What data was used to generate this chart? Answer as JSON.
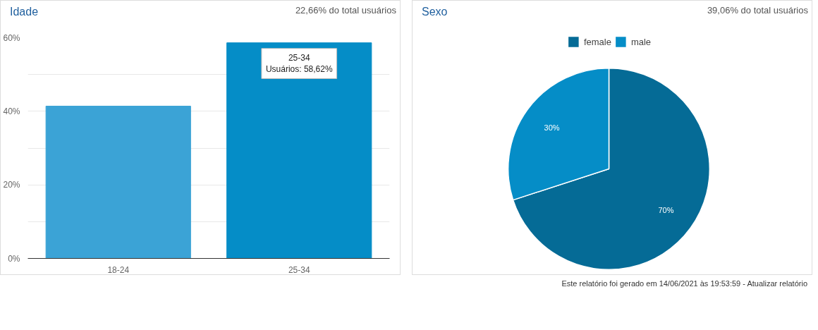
{
  "chart_data": [
    {
      "type": "bar",
      "title": "Idade",
      "subtitle": "22,66% do total usuários",
      "categories": [
        "18-24",
        "25-34"
      ],
      "values": [
        41.4,
        58.62
      ],
      "colors": [
        "#3ba3d6",
        "#058dc7"
      ],
      "ylim": [
        0,
        60
      ],
      "yticks": [
        {
          "value": 0,
          "label": "0%"
        },
        {
          "value": 10,
          "label": null
        },
        {
          "value": 20,
          "label": "20%"
        },
        {
          "value": 30,
          "label": null
        },
        {
          "value": 40,
          "label": "40%"
        },
        {
          "value": 50,
          "label": null
        },
        {
          "value": 60,
          "label": "60%"
        }
      ],
      "grid": "y",
      "annotations": [
        {
          "text": "25-34\nUsuários: 58,62%",
          "x": "25-34",
          "y": 58.62
        }
      ]
    },
    {
      "type": "pie",
      "title": "Sexo",
      "subtitle": "39,06% do total usuários",
      "categories": [
        "female",
        "male"
      ],
      "values": [
        70,
        30
      ],
      "colors": [
        "#056b96",
        "#058dc7"
      ],
      "legend": "top",
      "value_labels": [
        "70%",
        "30%"
      ],
      "annotations": [
        "Este relatório foi gerado em 14/06/2021 às 19:53:59 - Atualizar relatório"
      ]
    }
  ]
}
